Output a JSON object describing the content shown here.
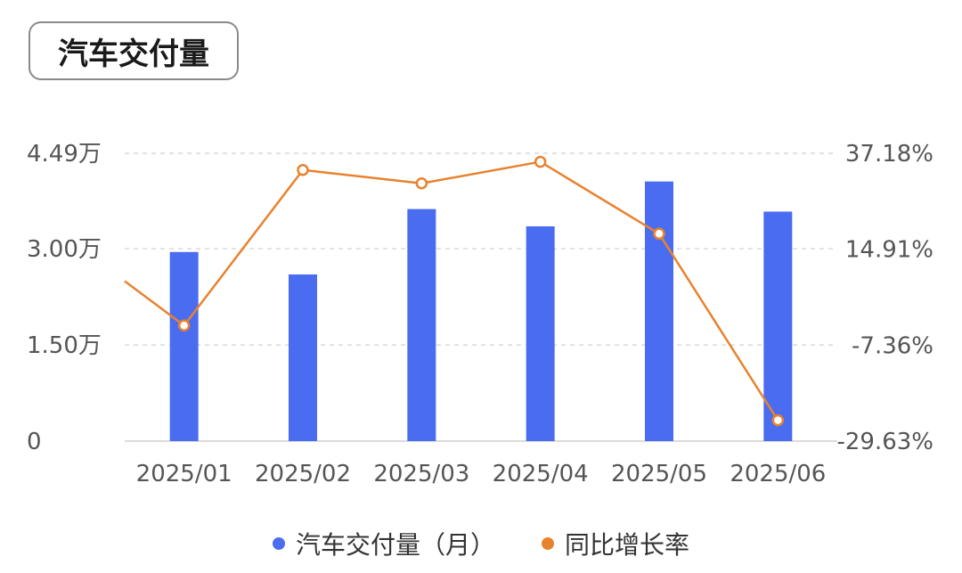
{
  "title": "汽车交付量",
  "colors": {
    "bar": "#4a6cf0",
    "line": "#e8822e",
    "grid": "#d9d9d9",
    "axis_text": "#555555"
  },
  "chart_data": {
    "type": "bar+line",
    "categories": [
      "2025/01",
      "2025/02",
      "2025/03",
      "2025/04",
      "2025/05",
      "2025/06"
    ],
    "series": [
      {
        "name": "汽车交付量（月）",
        "type": "bar",
        "axis": "left",
        "values": [
          29500,
          26000,
          36200,
          33500,
          40500,
          35800
        ]
      },
      {
        "name": "同比增长率",
        "type": "line",
        "axis": "right",
        "values": [
          -2.8,
          33.3,
          30.2,
          35.2,
          18.5,
          -24.8
        ]
      }
    ],
    "left_axis": {
      "ticks": [
        "0",
        "1.50万",
        "3.00万",
        "4.49万"
      ],
      "tick_values": [
        0,
        15000,
        30000,
        44900
      ],
      "range": [
        0,
        44900
      ]
    },
    "right_axis": {
      "ticks": [
        "-29.63%",
        "-7.36%",
        "14.91%",
        "37.18%"
      ],
      "tick_values": [
        -29.63,
        -7.36,
        14.91,
        37.18
      ],
      "range": [
        -29.63,
        37.18
      ]
    },
    "line_lead_in_value": 7.5,
    "grid": true,
    "legend_position": "bottom"
  }
}
